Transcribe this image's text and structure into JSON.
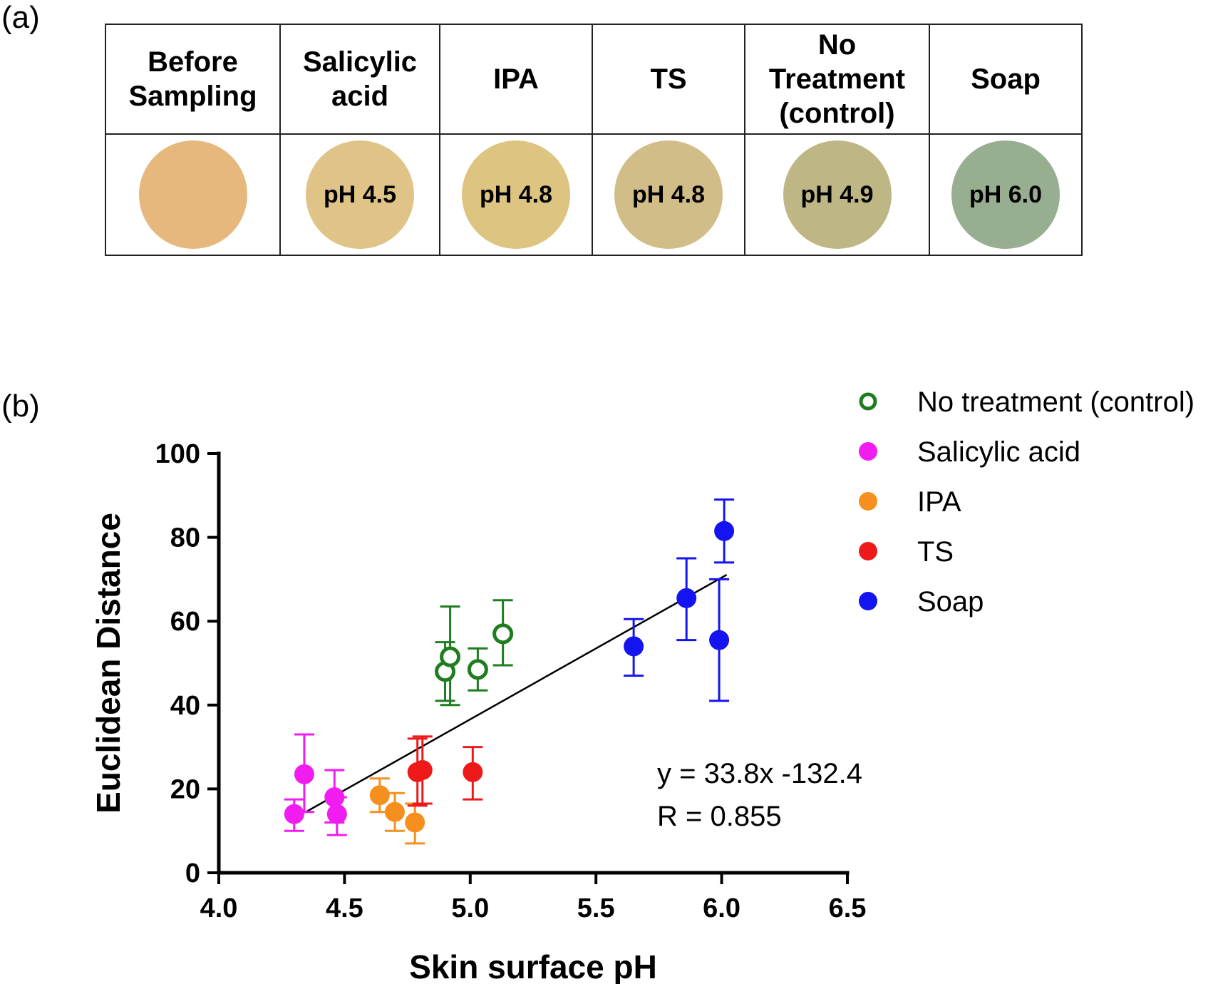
{
  "panel_labels": {
    "a": "(a)",
    "b": "(b)"
  },
  "swatch_table": {
    "columns": [
      {
        "header_lines": [
          "Before",
          "Sampling"
        ],
        "ph_label": "",
        "color": "#E6B87E"
      },
      {
        "header_lines": [
          "Salicylic",
          "acid"
        ],
        "ph_label": "pH 4.5",
        "color": "#E0C487"
      },
      {
        "header_lines": [
          "IPA"
        ],
        "ph_label": "pH 4.8",
        "color": "#DDC480"
      },
      {
        "header_lines": [
          "TS"
        ],
        "ph_label": "pH 4.8",
        "color": "#D1BD88"
      },
      {
        "header_lines": [
          "No",
          "Treatment",
          "(control)"
        ],
        "ph_label": "pH 4.9",
        "color": "#BEB785"
      },
      {
        "header_lines": [
          "Soap"
        ],
        "ph_label": "pH 6.0",
        "color": "#98AE91"
      }
    ]
  },
  "chart_data": {
    "type": "scatter",
    "xlabel": "Skin surface pH",
    "ylabel": "Euclidean Distance",
    "xlim": [
      4.0,
      6.5
    ],
    "ylim": [
      0,
      100
    ],
    "xticks": [
      "4.0",
      "4.5",
      "5.0",
      "5.5",
      "6.0",
      "6.5"
    ],
    "xtick_values": [
      4.0,
      4.5,
      5.0,
      5.5,
      6.0,
      6.5
    ],
    "yticks": [
      "0",
      "20",
      "40",
      "60",
      "80",
      "100"
    ],
    "ytick_values": [
      0,
      20,
      40,
      60,
      80,
      100
    ],
    "grid": false,
    "legend_position": "top-right",
    "series": [
      {
        "name": "No treatment (control)",
        "color": "#1E7D1E",
        "marker": "open-circle",
        "points": [
          {
            "x": 4.9,
            "y": 48,
            "err_up": 7,
            "err_down": 7
          },
          {
            "x": 4.92,
            "y": 51.5,
            "err_up": 12,
            "err_down": 11.5
          },
          {
            "x": 5.03,
            "y": 48.5,
            "err_up": 5,
            "err_down": 5
          },
          {
            "x": 5.13,
            "y": 57,
            "err_up": 8,
            "err_down": 7.5
          }
        ]
      },
      {
        "name": "Salicylic acid",
        "color": "#F01CF0",
        "marker": "filled-circle",
        "points": [
          {
            "x": 4.3,
            "y": 14,
            "err_up": 3.5,
            "err_down": 4
          },
          {
            "x": 4.34,
            "y": 23.5,
            "err_up": 9.5,
            "err_down": 9
          },
          {
            "x": 4.46,
            "y": 18,
            "err_up": 6.5,
            "err_down": 6
          },
          {
            "x": 4.47,
            "y": 14,
            "err_up": 4,
            "err_down": 5
          }
        ]
      },
      {
        "name": "IPA",
        "color": "#F5901E",
        "marker": "filled-circle",
        "points": [
          {
            "x": 4.64,
            "y": 18.5,
            "err_up": 4,
            "err_down": 4
          },
          {
            "x": 4.7,
            "y": 14.5,
            "err_up": 4.5,
            "err_down": 4.5
          },
          {
            "x": 4.78,
            "y": 12,
            "err_up": 4.5,
            "err_down": 5
          }
        ]
      },
      {
        "name": "TS",
        "color": "#EE1A1A",
        "marker": "filled-circle",
        "points": [
          {
            "x": 4.79,
            "y": 24,
            "err_up": 8,
            "err_down": 8
          },
          {
            "x": 4.81,
            "y": 24.5,
            "err_up": 8,
            "err_down": 8
          },
          {
            "x": 5.01,
            "y": 24,
            "err_up": 6,
            "err_down": 6.5
          }
        ]
      },
      {
        "name": "Soap",
        "color": "#1414F0",
        "marker": "filled-circle",
        "points": [
          {
            "x": 5.65,
            "y": 54,
            "err_up": 6.5,
            "err_down": 7
          },
          {
            "x": 5.86,
            "y": 65.5,
            "err_up": 9.5,
            "err_down": 10
          },
          {
            "x": 5.99,
            "y": 55.5,
            "err_up": 14.5,
            "err_down": 14.5
          },
          {
            "x": 6.01,
            "y": 81.5,
            "err_up": 7.5,
            "err_down": 7.5
          }
        ]
      }
    ],
    "fit_line": {
      "slope": 33.8,
      "intercept": -132.4,
      "x_start": 4.35,
      "x_end": 6.02
    },
    "annotations": {
      "equation": "y = 33.8x -132.4",
      "r_value": "R = 0.855"
    }
  }
}
